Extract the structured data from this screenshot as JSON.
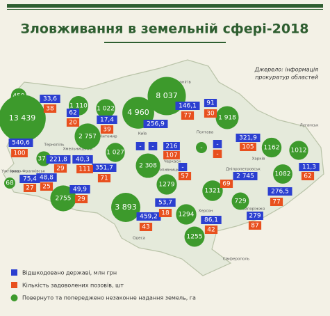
{
  "header": {
    "title": "Зловживання в земельній сфері-2018",
    "source": [
      "Джерело: інформація",
      "прокуратур областей"
    ]
  },
  "legend": [
    "Відшкодовано державі, млн грн",
    "Кількість задоволених позовів, шт",
    "Повернуто та попереджено незаконне надання земель, га"
  ],
  "cities": [
    "Чернігів",
    "Житомир",
    "Київ",
    "Полтава",
    "Харків",
    "Луганськ",
    "Тернопіль",
    "Хмельницький",
    "Івано-Франківськ",
    "Ужгород",
    "Черкаси",
    "Кропивницький",
    "Дніпропетровськ",
    "Запоріжжя",
    "Херсон",
    "Одеса",
    "Сімферополь"
  ],
  "hectares": [
    "459",
    "13 439",
    "1 110",
    "1 022",
    "4 960",
    "8 037",
    "1 918",
    "2 757",
    "374",
    "1 027",
    "2 308",
    "68",
    "2755",
    "1279",
    "1321",
    "1162",
    "1012",
    "1082",
    "729",
    "3 893",
    "1294",
    "1255",
    "-"
  ],
  "uah": [
    "33,6",
    "62",
    "17,4",
    "146,1",
    "91",
    "540,6",
    "256,9",
    "-",
    "-",
    "216",
    "-",
    "321,9",
    "221,8",
    "40,3",
    "351,7",
    "75,4",
    "48,8",
    "49,9",
    "-",
    "2 745",
    "11,3",
    "276,5",
    "53,7",
    "459,2",
    "86,1",
    "279"
  ],
  "suits": [
    "38",
    "20",
    "39",
    "77",
    "30",
    "100",
    "107",
    "-",
    "105",
    "29",
    "111",
    "71",
    "27",
    "25",
    "29",
    "57",
    "69",
    "62",
    "77",
    "18",
    "43",
    "42",
    "87"
  ]
}
